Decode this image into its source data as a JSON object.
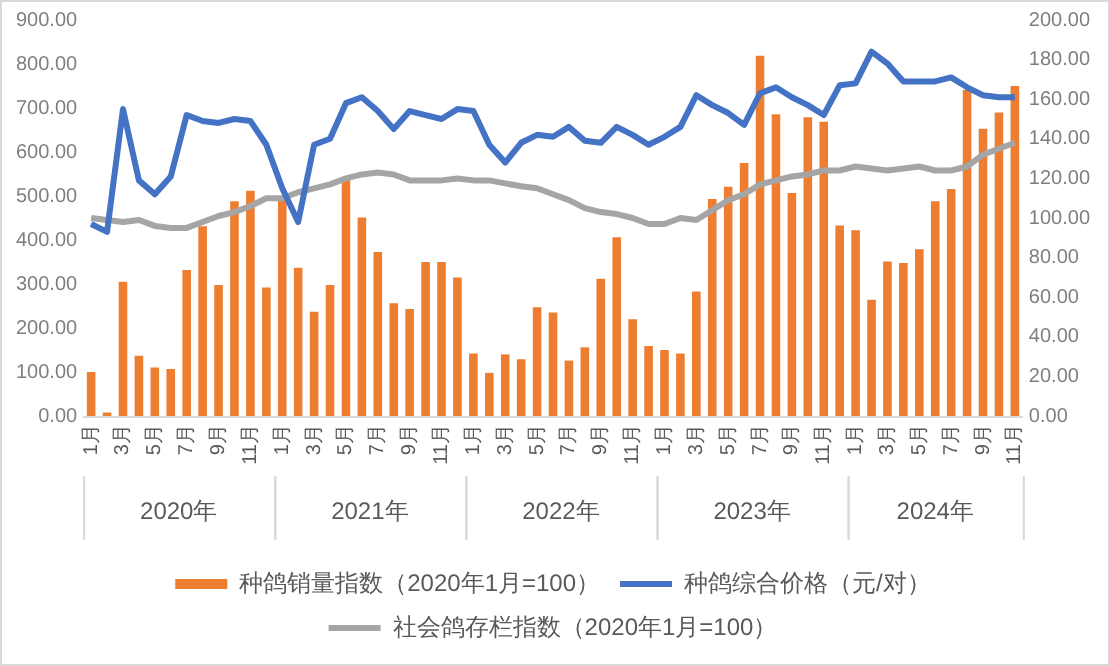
{
  "chart_data": {
    "type": "bar",
    "categories": [
      "1月",
      null,
      "3月",
      null,
      "5月",
      null,
      "7月",
      null,
      "9月",
      null,
      "11月",
      null,
      "1月",
      null,
      "3月",
      null,
      "5月",
      null,
      "7月",
      null,
      "9月",
      null,
      "11月",
      null,
      "1月",
      null,
      "3月",
      null,
      "5月",
      null,
      "7月",
      null,
      "9月",
      null,
      "11月",
      null,
      "1月",
      null,
      "3月",
      null,
      "5月",
      null,
      "7月",
      null,
      "9月",
      null,
      "11月",
      null,
      "1月",
      null,
      "3月",
      null,
      "5月",
      null,
      "7月",
      null,
      "9月",
      null,
      "11月"
    ],
    "series": [
      {
        "name": "种鸽销量指数（2020年1月=100）",
        "color": "#ed7d31",
        "values": [
          100,
          8,
          305,
          137,
          110,
          107,
          332,
          431,
          298,
          488,
          512,
          292,
          496,
          337,
          237,
          298,
          539,
          451,
          373,
          256,
          243,
          350,
          350,
          315,
          142,
          98,
          140,
          129,
          247,
          235,
          126,
          156,
          312,
          406,
          220,
          159,
          150,
          142,
          283,
          493,
          521,
          575,
          819,
          686,
          507,
          679,
          669,
          433,
          422,
          264,
          351,
          348,
          379,
          488,
          516,
          741,
          653,
          690,
          750
        ]
      },
      {
        "name": "种鸽综合价格（元/对）",
        "type": "line",
        "axis": "y2",
        "color": "#4472c4",
        "values": [
          97,
          93,
          155,
          119,
          112,
          121,
          152,
          149,
          148,
          150,
          149,
          137,
          115,
          98,
          137,
          140,
          158,
          161,
          154,
          145,
          154,
          152,
          150,
          155,
          154,
          137,
          128,
          138,
          142,
          141,
          146,
          139,
          138,
          146,
          142,
          137,
          141,
          146,
          162,
          157,
          153,
          147,
          163,
          166,
          161,
          157,
          152,
          167,
          168,
          184,
          178,
          169,
          169,
          169,
          171,
          166,
          162,
          161,
          161
        ]
      },
      {
        "name": "社会鸽存栏指数（2020年1月=100）",
        "type": "line",
        "axis": "y2",
        "color": "#a5a5a5",
        "values": [
          100,
          99,
          98,
          99,
          96,
          95,
          95,
          98,
          101,
          103,
          106,
          110,
          110,
          113,
          115,
          117,
          120,
          122,
          123,
          122,
          119,
          119,
          119,
          120,
          119,
          119,
          117.5,
          116,
          115,
          112,
          109,
          105,
          103,
          102,
          100,
          97,
          97,
          100,
          99,
          104,
          109,
          112,
          117,
          119,
          121,
          122,
          124,
          124,
          126,
          125,
          124,
          125,
          126,
          124,
          124,
          126,
          132,
          135,
          138
        ]
      }
    ],
    "ylim": [
      0,
      900
    ],
    "yticks": [
      {
        "value": 0,
        "label": "0.00"
      },
      {
        "value": 100,
        "label": "100.00"
      },
      {
        "value": 200,
        "label": "200.00"
      },
      {
        "value": 300,
        "label": "300.00"
      },
      {
        "value": 400,
        "label": "400.00"
      },
      {
        "value": 500,
        "label": "500.00"
      },
      {
        "value": 600,
        "label": "600.00"
      },
      {
        "value": 700,
        "label": "700.00"
      },
      {
        "value": 800,
        "label": "800.00"
      },
      {
        "value": 900,
        "label": "900.00"
      }
    ],
    "y2lim": [
      0,
      200
    ],
    "y2ticks": [
      {
        "value": 0,
        "label": "0.00"
      },
      {
        "value": 20,
        "label": "20.00"
      },
      {
        "value": 40,
        "label": "40.00"
      },
      {
        "value": 60,
        "label": "60.00"
      },
      {
        "value": 80,
        "label": "80.00"
      },
      {
        "value": 100,
        "label": "100.00"
      },
      {
        "value": 120,
        "label": "120.00"
      },
      {
        "value": 140,
        "label": "140.00"
      },
      {
        "value": 160,
        "label": "160.00"
      },
      {
        "value": 180,
        "label": "180.00"
      },
      {
        "value": 200,
        "label": "200.00"
      }
    ],
    "annotations": [
      "2020年",
      "2021年",
      "2022年",
      "2023年",
      "2024年"
    ],
    "grid": false,
    "legend": "bottom",
    "marker": "none",
    "line_style": "solid"
  }
}
